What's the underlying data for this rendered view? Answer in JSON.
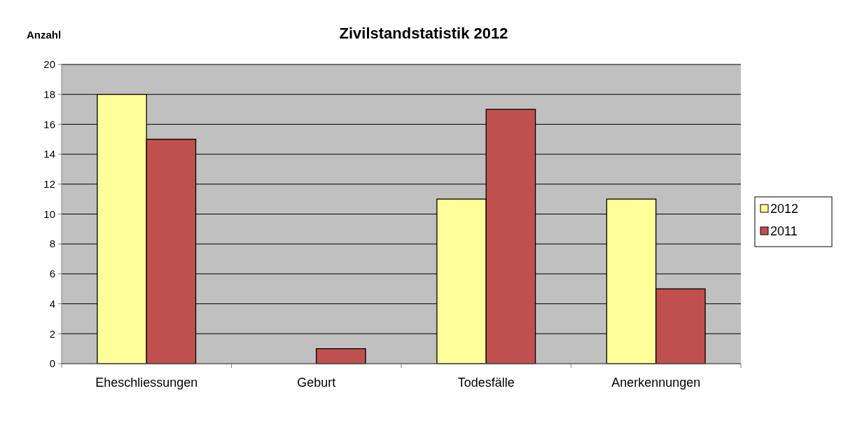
{
  "chart_data": {
    "type": "bar",
    "title": "Zivilstandstatistik 2012",
    "ylabel": "Anzahl",
    "categories": [
      "Eheschliessungen",
      "Geburt",
      "Todesfälle",
      "Anerkennungen"
    ],
    "series": [
      {
        "name": "2012",
        "color": "#ffff99",
        "values": [
          18,
          0,
          11,
          11
        ]
      },
      {
        "name": "2011",
        "color": "#c0504d",
        "values": [
          15,
          1,
          17,
          5
        ]
      }
    ],
    "ylim": [
      0,
      20
    ],
    "yticks": [
      0,
      2,
      4,
      6,
      8,
      10,
      12,
      14,
      16,
      18,
      20
    ],
    "grid": "y",
    "legend": "right"
  }
}
